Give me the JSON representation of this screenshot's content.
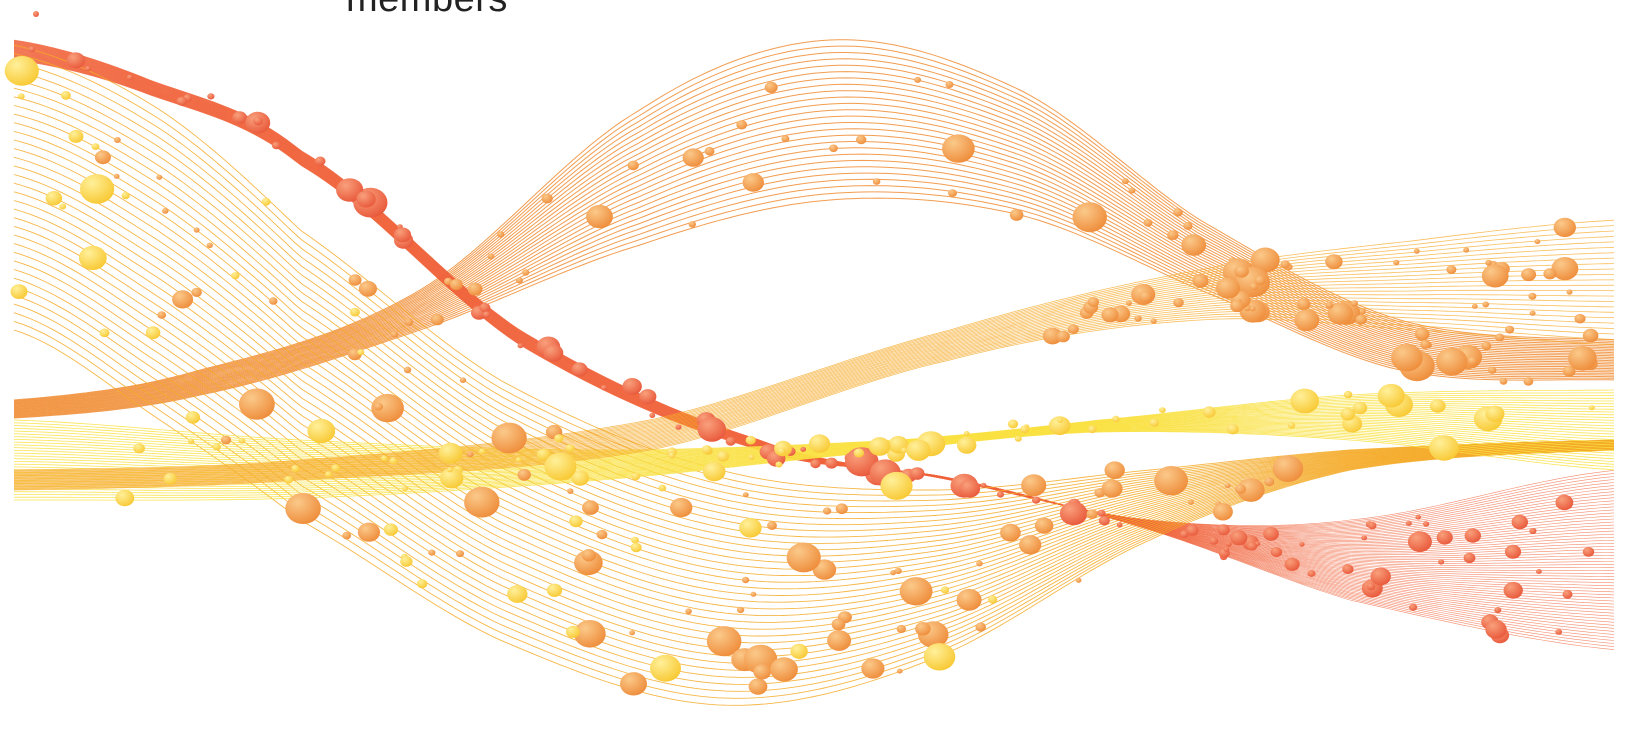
{
  "caption": {
    "text": "members"
  },
  "artwork": {
    "palette": {
      "background": "#ffffff",
      "red_orange": "#f0643c",
      "orange": "#f08c32",
      "amber": "#f5aa28",
      "yellow": "#fae141",
      "bubble_red": "#ee6e4e",
      "bubble_orange": "#f2a35a",
      "bubble_yellow": "#fbd24c"
    }
  }
}
